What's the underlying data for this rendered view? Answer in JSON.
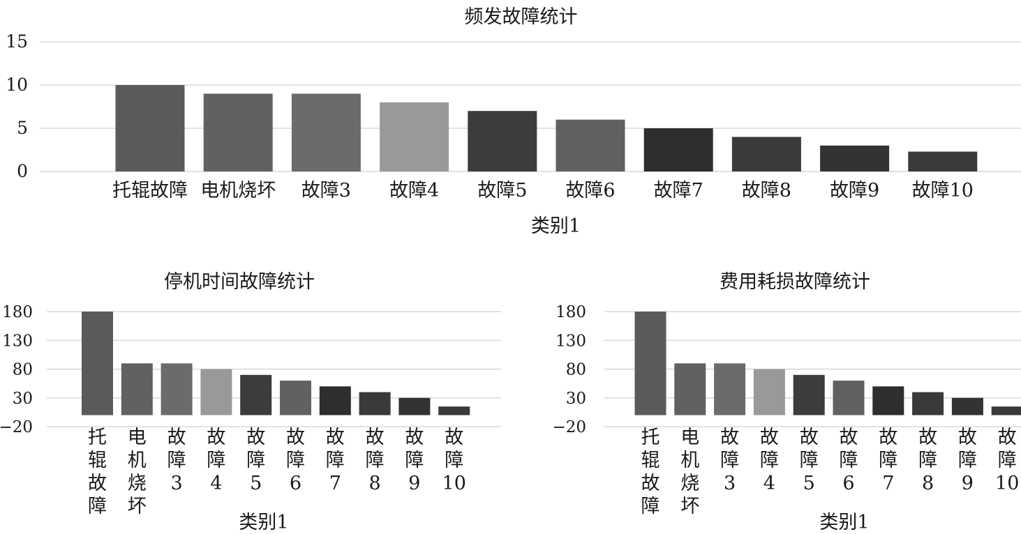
{
  "chart_data": [
    {
      "type": "bar",
      "title": "频发故障统计",
      "xlabel": "类别1",
      "ylabel": "",
      "ylim": [
        0,
        15
      ],
      "yticks": [
        0,
        5,
        10,
        15
      ],
      "categories": [
        "托辊故障",
        "电机烧坏",
        "故障3",
        "故障4",
        "故障5",
        "故障6",
        "故障7",
        "故障8",
        "故障9",
        "故障10"
      ],
      "values": [
        10,
        9,
        9,
        8,
        7,
        6,
        5,
        4,
        3,
        2.3
      ],
      "grid": true,
      "legend": "none",
      "bar_colors": [
        "#5a5a5a",
        "#616161",
        "#6b6b6b",
        "#999999",
        "#3c3c3c",
        "#616161",
        "#2e2e2e",
        "#3a3a3a",
        "#333333",
        "#3a3a3a"
      ]
    },
    {
      "type": "bar",
      "title": "停机时间故障统计",
      "xlabel": "类别1",
      "ylabel": "",
      "ylim": [
        -20,
        180
      ],
      "yticks": [
        -20,
        30,
        80,
        130,
        180
      ],
      "tick_labels": [
        "−20",
        "30",
        "80",
        "130",
        "180"
      ],
      "categories": [
        "托辊故障",
        "电机烧坏",
        "故障3",
        "故障4",
        "故障5",
        "故障6",
        "故障7",
        "故障8",
        "故障9",
        "故障10"
      ],
      "values": [
        180,
        90,
        90,
        80,
        70,
        60,
        50,
        40,
        30,
        15
      ],
      "grid": true,
      "legend": "none",
      "bar_colors": [
        "#5a5a5a",
        "#616161",
        "#6b6b6b",
        "#999999",
        "#3c3c3c",
        "#616161",
        "#2e2e2e",
        "#3a3a3a",
        "#333333",
        "#3a3a3a"
      ]
    },
    {
      "type": "bar",
      "title": "费用耗损故障统计",
      "xlabel": "类别1",
      "ylabel": "",
      "ylim": [
        -20,
        180
      ],
      "yticks": [
        -20,
        30,
        80,
        130,
        180
      ],
      "tick_labels": [
        "−20",
        "30",
        "80",
        "130",
        "180"
      ],
      "categories": [
        "托辊故障",
        "电机烧坏",
        "故障3",
        "故障4",
        "故障5",
        "故障6",
        "故障7",
        "故障8",
        "故障9",
        "故障10"
      ],
      "values": [
        180,
        90,
        90,
        80,
        70,
        60,
        50,
        40,
        30,
        15
      ],
      "grid": true,
      "legend": "none",
      "bar_colors": [
        "#5a5a5a",
        "#616161",
        "#6b6b6b",
        "#999999",
        "#3c3c3c",
        "#616161",
        "#2e2e2e",
        "#3a3a3a",
        "#333333",
        "#3a3a3a"
      ]
    }
  ]
}
